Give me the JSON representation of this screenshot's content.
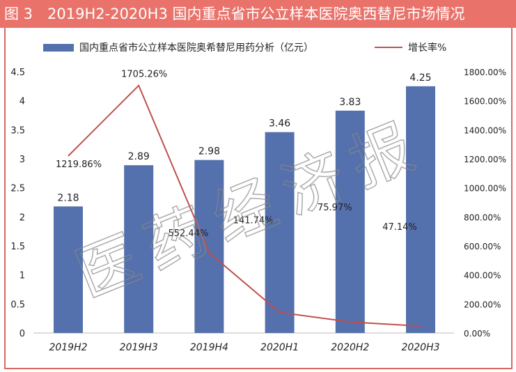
{
  "title": "图 3　2019H2-2020H3 国内重点省市公立样本医院奥西替尼市场情况",
  "watermark": "医药经济报",
  "chart_data": {
    "type": "bar+line",
    "categories": [
      "2019H2",
      "2019H3",
      "2019H4",
      "2020H1",
      "2020H2",
      "2020H3"
    ],
    "series": [
      {
        "name": "国内重点省市公立样本医院奥希替尼用药分析（亿元）",
        "type": "bar",
        "axis": "left",
        "values": [
          2.18,
          2.89,
          2.98,
          3.46,
          3.83,
          4.25
        ],
        "labels": [
          "2.18",
          "2.89",
          "2.98",
          "3.46",
          "3.83",
          "4.25"
        ],
        "color": "#5470ad"
      },
      {
        "name": "增长率%",
        "type": "line",
        "axis": "right",
        "values": [
          1219.86,
          1705.26,
          552.44,
          141.74,
          75.97,
          47.14
        ],
        "labels": [
          "1219.86%",
          "1705.26%",
          "552.44%",
          "141.74%",
          "75.97%",
          "47.14%"
        ],
        "color": "#c0504d"
      }
    ],
    "left_axis": {
      "range": [
        0,
        4.5
      ],
      "ticks": [
        "0",
        "0.5",
        "1",
        "1.5",
        "2",
        "2.5",
        "3",
        "3.5",
        "4",
        "4.5"
      ]
    },
    "right_axis": {
      "range": [
        0,
        1800
      ],
      "ticks": [
        "0.00%",
        "200.00%",
        "400.00%",
        "600.00%",
        "800.00%",
        "1000.00%",
        "1200.00%",
        "1400.00%",
        "1600.00%",
        "1800.00%"
      ]
    },
    "grid": false,
    "legend": "top"
  }
}
